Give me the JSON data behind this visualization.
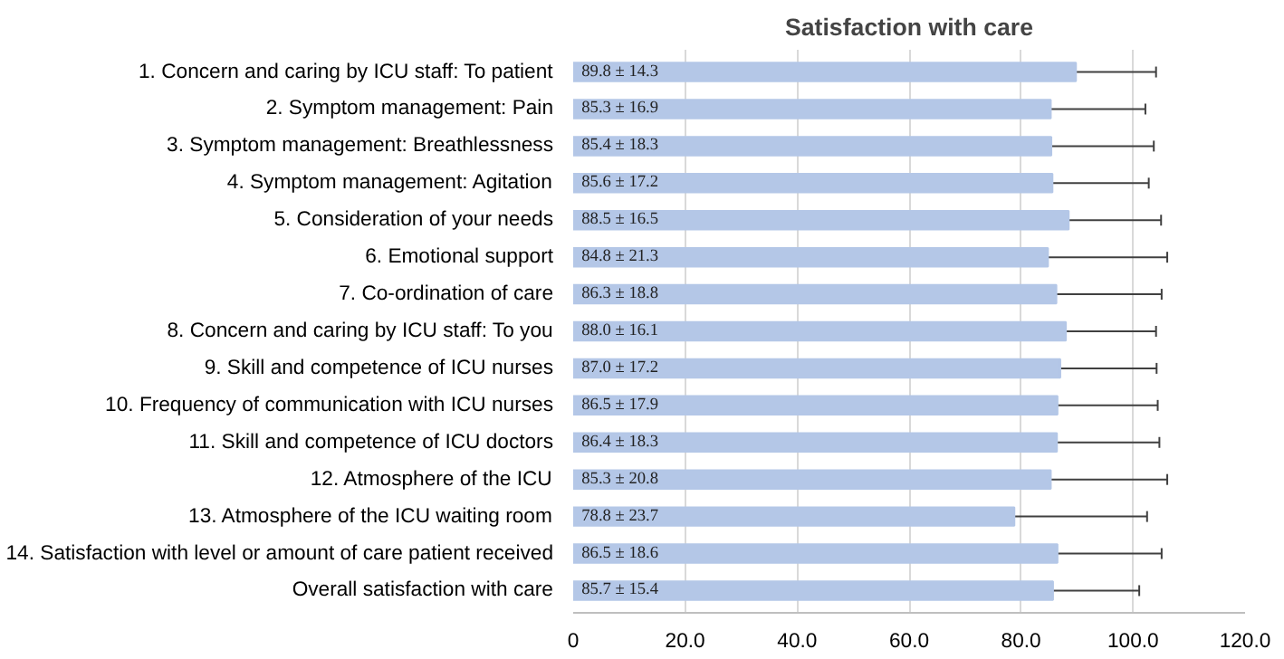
{
  "chart_data": {
    "type": "bar",
    "orientation": "horizontal",
    "title": "Satisfaction with care",
    "categories": [
      "1. Concern and caring by ICU staff: To patient",
      "2. Symptom management: Pain",
      "3. Symptom management: Breathlessness",
      "4. Symptom management: Agitation",
      "5. Consideration of your needs",
      "6. Emotional support",
      "7. Co-ordination of care",
      "8. Concern and caring by ICU staff: To you",
      "9. Skill and competence of ICU nurses",
      "10. Frequency of communication with ICU nurses",
      "11. Skill and competence of ICU doctors",
      "12. Atmosphere of the ICU",
      "13. Atmosphere of the ICU waiting room",
      "14. Satisfaction with level or amount of care patient received",
      "Overall satisfaction with care"
    ],
    "values": [
      89.8,
      85.3,
      85.4,
      85.6,
      88.5,
      84.8,
      86.3,
      88.0,
      87.0,
      86.5,
      86.4,
      85.3,
      78.8,
      86.5,
      85.7
    ],
    "errors": [
      14.3,
      16.9,
      18.3,
      17.2,
      16.5,
      21.3,
      18.8,
      16.1,
      17.2,
      17.9,
      18.3,
      20.8,
      23.7,
      18.6,
      15.4
    ],
    "value_labels": [
      "89.8 ± 14.3",
      "85.3 ± 16.9",
      "85.4 ± 18.3",
      "85.6 ± 17.2",
      "88.5 ± 16.5",
      "84.8 ± 21.3",
      "86.3 ± 18.8",
      "88.0 ± 16.1",
      "87.0 ± 17.2",
      "86.5 ± 17.9",
      "86.4 ± 18.3",
      "85.3 ± 20.8",
      "78.8 ± 23.7",
      "86.5 ± 18.6",
      "85.7 ± 15.4"
    ],
    "color": "#b4c7e7",
    "xlim": [
      0,
      120
    ],
    "xticks": [
      {
        "value": 0,
        "label": "0"
      },
      {
        "value": 20,
        "label": "20.0"
      },
      {
        "value": 40,
        "label": "40.0"
      },
      {
        "value": 60,
        "label": "60.0"
      },
      {
        "value": 80,
        "label": "80.0"
      },
      {
        "value": 100,
        "label": "100.0"
      },
      {
        "value": 120,
        "label": "120.0"
      }
    ],
    "grid": "x"
  }
}
